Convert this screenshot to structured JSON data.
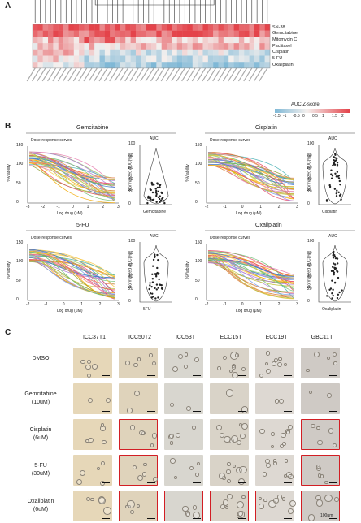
{
  "panels": {
    "A": {
      "letter": "A",
      "rows": [
        "SN-38",
        "Gemcitabine",
        "Mitomycin C",
        "Paclitaxel",
        "Cisplatin",
        "5-FU",
        "Oxaliplatin"
      ],
      "legend_title": "AUC Z-score",
      "legend_ticks": [
        "-1.5",
        "-1",
        "-0.5",
        "0",
        "0.5",
        "1",
        "1.5",
        "2"
      ],
      "colors": {
        "low": "#7fb8d6",
        "mid": "#f4f0ee",
        "high": "#e4434a"
      }
    },
    "B": {
      "letter": "B",
      "subplots": [
        {
          "drug": "Gemcitabine",
          "curve_title": "Dose-response curves",
          "auc_title": "AUC",
          "xlabel": "Log drug (μM)",
          "ylabel": "%Viability",
          "auc_ylabel": "Normalized AUC(%)",
          "xticks": [
            "-3",
            "-2",
            "-1",
            "0",
            "1",
            "2",
            "3"
          ],
          "yticks": [
            "0",
            "50",
            "100",
            "150"
          ],
          "auc_yticks": [
            "0",
            "20",
            "40",
            "60",
            "80",
            "100"
          ],
          "auc_xlabel": "Gemcitabine"
        },
        {
          "drug": "Cisplatin",
          "curve_title": "Dose-response curves",
          "auc_title": "AUC",
          "xlabel": "Log drug (μM)",
          "ylabel": "%Viability",
          "auc_ylabel": "Normalized AUC(%)",
          "xticks": [
            "-2",
            "-1",
            "0",
            "1",
            "2",
            "3"
          ],
          "yticks": [
            "0",
            "50",
            "100",
            "150"
          ],
          "auc_yticks": [
            "0",
            "20",
            "40",
            "60",
            "80",
            "100"
          ],
          "auc_xlabel": "Cisplatin"
        },
        {
          "drug": "5-FU",
          "curve_title": "Dose-response curves",
          "auc_title": "AUC",
          "xlabel": "Log drug (μM)",
          "ylabel": "%Viability",
          "auc_ylabel": "Normalized AUC(%)",
          "xticks": [
            "-2",
            "-1",
            "0",
            "1",
            "2",
            "3"
          ],
          "yticks": [
            "0",
            "50",
            "100",
            "150"
          ],
          "auc_yticks": [
            "0",
            "20",
            "40",
            "60",
            "80",
            "100"
          ],
          "auc_xlabel": "5FU"
        },
        {
          "drug": "Oxaliplatin",
          "curve_title": "Dose-response curves",
          "auc_title": "AUC",
          "xlabel": "Log drug (μM)",
          "ylabel": "%Viability",
          "auc_ylabel": "Normalized AUC(%)",
          "xticks": [
            "-2",
            "-1",
            "0",
            "1",
            "2",
            "3"
          ],
          "yticks": [
            "0",
            "50",
            "100",
            "150"
          ],
          "auc_yticks": [
            "0",
            "20",
            "40",
            "60",
            "80",
            "100"
          ],
          "auc_xlabel": "Oxaliplatin"
        }
      ]
    },
    "C": {
      "letter": "C",
      "columns": [
        "ICC37T1",
        "ICC50T2",
        "ICC53T",
        "ECC15T",
        "ECC19T",
        "GBC11T"
      ],
      "rows": [
        {
          "line1": "DMSO",
          "line2": ""
        },
        {
          "line1": "Gemcitabine",
          "line2": "(10uM)"
        },
        {
          "line1": "Cisplatin",
          "line2": "(6uM)"
        },
        {
          "line1": "5-FU",
          "line2": "(30uM)"
        },
        {
          "line1": "Oxaliplatin",
          "line2": "(6uM)"
        }
      ],
      "scale_label": "100μm"
    }
  }
}
